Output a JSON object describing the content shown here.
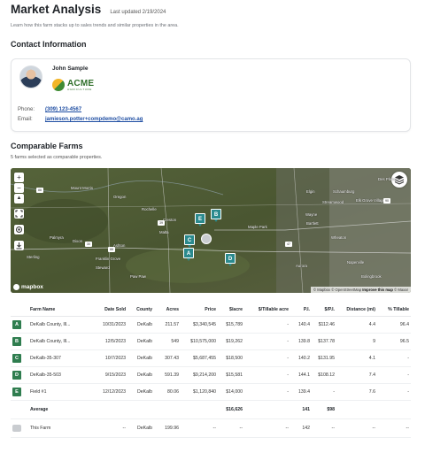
{
  "header": {
    "title": "Market Analysis",
    "updated": "Last updated 2/19/2024"
  },
  "intro": "Learn how this farm stacks up to sales trends and similar properties in the area.",
  "contact": {
    "section_title": "Contact Information",
    "name": "John Sample",
    "company_logo_text": "ACME",
    "company_logo_sub": "AGRICULTURE",
    "phone_label": "Phone:",
    "phone": "(309) 123-4567",
    "email_label": "Email:",
    "email": "jamieson.potter+compdemo@camo.ag"
  },
  "comparables": {
    "section_title": "Comparable Farms",
    "subtitle": "5 farms selected as comparable properties."
  },
  "map": {
    "controls": {
      "zoom_in": "+",
      "zoom_out": "−",
      "north": "▲"
    },
    "places": [
      "Mount Morris",
      "Oregon",
      "Rochelle",
      "Creston",
      "Dixon",
      "Ashton",
      "Sterling",
      "Franklin Grove",
      "Steward",
      "Paw Paw",
      "Palmyra",
      "Malta",
      "Maple Park",
      "Elgin",
      "Schaumburg",
      "Wayne",
      "Wheaton",
      "Aurora",
      "Naperville",
      "Bolingbrook",
      "Des Plaines",
      "Elk Grove Village",
      "Streamwood",
      "Bartlett"
    ],
    "highways": [
      "88",
      "39",
      "88",
      "30",
      "47",
      "90"
    ],
    "markers": [
      "E",
      "B",
      "C",
      "A",
      "D"
    ],
    "logo": "mapbox",
    "attribution_mapbox": "© Mapbox",
    "attribution_osm": "© OpenStreetMap",
    "attribution_improve": "Improve this map",
    "attribution_maxar": "© Maxar",
    "colors": {
      "marker": "#2b8a8e",
      "satellite": "#4c5a34"
    }
  },
  "table": {
    "headers": [
      "Farm Name",
      "Date Sold",
      "County",
      "Acres",
      "Price",
      "$/acre",
      "$/Tillable acre",
      "P.I.",
      "$/P.I.",
      "Distance (mi)",
      "% Tillable"
    ],
    "rows": [
      {
        "letter": "A",
        "name": "DeKalb County, Ill...",
        "date": "10/31/2023",
        "county": "DeKalb",
        "acres": "211.57",
        "price": "$3,340,545",
        "per_acre": "$15,789",
        "per_tillable": "-",
        "pi": "140.4",
        "per_pi": "$112.46",
        "distance": "4.4",
        "tillable": "96.4"
      },
      {
        "letter": "B",
        "name": "DeKalb County, Ill...",
        "date": "12/5/2023",
        "county": "DeKalb",
        "acres": "549",
        "price": "$10,575,000",
        "per_acre": "$19,262",
        "per_tillable": "-",
        "pi": "139.8",
        "per_pi": "$137.78",
        "distance": "9",
        "tillable": "96.5"
      },
      {
        "letter": "C",
        "name": "DeKalb-35-307",
        "date": "10/7/2023",
        "county": "DeKalb",
        "acres": "307.43",
        "price": "$5,687,455",
        "per_acre": "$18,500",
        "per_tillable": "-",
        "pi": "140.2",
        "per_pi": "$131.95",
        "distance": "4.1",
        "tillable": "-"
      },
      {
        "letter": "D",
        "name": "DeKalb-35-503",
        "date": "9/15/2023",
        "county": "DeKalb",
        "acres": "591.39",
        "price": "$9,214,200",
        "per_acre": "$15,581",
        "per_tillable": "-",
        "pi": "144.1",
        "per_pi": "$108.12",
        "distance": "7.4",
        "tillable": "-"
      },
      {
        "letter": "E",
        "name": "Field #1",
        "date": "12/12/2023",
        "county": "DeKalb",
        "acres": "80.06",
        "price": "$1,120,840",
        "per_acre": "$14,000",
        "per_tillable": "-",
        "pi": "139.4",
        "per_pi": "-",
        "distance": "7.6",
        "tillable": "-"
      }
    ],
    "average": {
      "label": "Average",
      "date": "",
      "county": "",
      "acres": "",
      "price": "",
      "per_acre": "$16,626",
      "per_tillable": "",
      "pi": "141",
      "per_pi": "$98",
      "distance": "",
      "tillable": ""
    },
    "this_farm": {
      "label": "This Farm",
      "date": "--",
      "county": "DeKalb",
      "acres": "199.96",
      "price": "--",
      "per_acre": "--",
      "per_tillable": "--",
      "pi": "142",
      "per_pi": "--",
      "distance": "--",
      "tillable": "--"
    },
    "colors": {
      "letter_badge": "#2f7d4f",
      "link": "#1f4ea3"
    }
  }
}
